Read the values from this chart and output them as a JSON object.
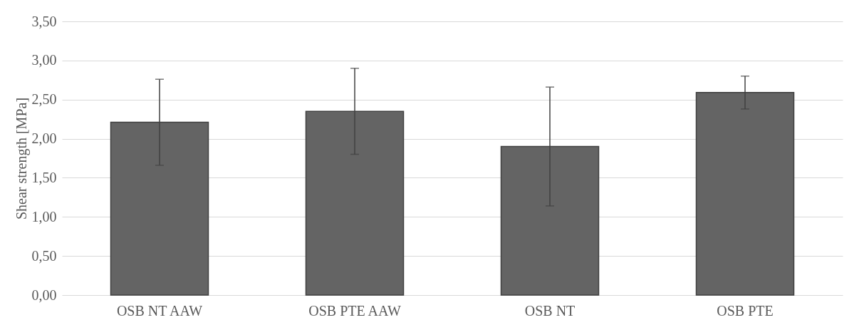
{
  "chart_data": {
    "type": "bar",
    "ylabel": "Shear strength [MPa]",
    "categories": [
      "OSB NT AAW",
      "OSB PTE AAW",
      "OSB NT",
      "OSB PTE"
    ],
    "values": [
      2.21,
      2.35,
      1.9,
      2.59
    ],
    "errors": [
      0.55,
      0.55,
      0.76,
      0.21
    ],
    "color": "#646464",
    "ylim": [
      0,
      3.5
    ],
    "yticks": [
      {
        "value": 0,
        "label": "0,00"
      },
      {
        "value": 0.5,
        "label": "0,50"
      },
      {
        "value": 1,
        "label": "1,00"
      },
      {
        "value": 1.5,
        "label": "1,50"
      },
      {
        "value": 2,
        "label": "2,00"
      },
      {
        "value": 2.5,
        "label": "2,50"
      },
      {
        "value": 3,
        "label": "3,00"
      },
      {
        "value": 3.5,
        "label": "3,50"
      }
    ],
    "grid": "y"
  }
}
